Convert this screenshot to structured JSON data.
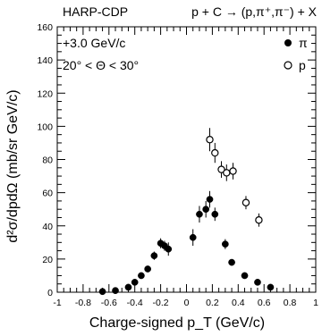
{
  "header": {
    "left": "HARP-CDP",
    "right": "p + C → (p,π⁺,π⁻) + X"
  },
  "chart_data": {
    "type": "scatter",
    "annotations": [
      "+3.0 GeV/c",
      "20° < Θ < 30°"
    ],
    "xlabel": "Charge-signed p_T (GeV/c)",
    "ylabel": "d²σ/dpdΩ (mb/sr GeV/c)",
    "xlim": [
      -1,
      1
    ],
    "ylim": [
      0,
      160
    ],
    "x_ticks": [
      "-1",
      "-0.8",
      "-0.6",
      "-0.4",
      "-0.2",
      "0",
      "0.2",
      "0.4",
      "0.6",
      "0.8",
      "1"
    ],
    "y_ticks": [
      "0",
      "20",
      "40",
      "60",
      "80",
      "100",
      "120",
      "140",
      "160"
    ],
    "legend_position": "top-right",
    "series": [
      {
        "name": "π",
        "marker": "filled-circle",
        "points": [
          {
            "x": -0.65,
            "y": 0.4,
            "err": 0.3
          },
          {
            "x": -0.55,
            "y": 1.0,
            "err": 0.4
          },
          {
            "x": -0.45,
            "y": 3.0,
            "err": 0.6
          },
          {
            "x": -0.4,
            "y": 6.0,
            "err": 1.0
          },
          {
            "x": -0.35,
            "y": 10.0,
            "err": 1.2
          },
          {
            "x": -0.3,
            "y": 14.0,
            "err": 1.5
          },
          {
            "x": -0.25,
            "y": 22.0,
            "err": 2.5
          },
          {
            "x": -0.2,
            "y": 29.5,
            "err": 3.0
          },
          {
            "x": -0.17,
            "y": 28.0,
            "err": 3.0
          },
          {
            "x": -0.14,
            "y": 26.0,
            "err": 4.0
          },
          {
            "x": 0.05,
            "y": 33.0,
            "err": 5.0
          },
          {
            "x": 0.1,
            "y": 47.0,
            "err": 5.0
          },
          {
            "x": 0.15,
            "y": 50.0,
            "err": 5.0
          },
          {
            "x": 0.18,
            "y": 56.0,
            "err": 5.0
          },
          {
            "x": 0.22,
            "y": 47.0,
            "err": 4.0
          },
          {
            "x": 0.3,
            "y": 29.0,
            "err": 3.0
          },
          {
            "x": 0.35,
            "y": 18.0,
            "err": 1.5
          },
          {
            "x": 0.45,
            "y": 10.0,
            "err": 1.0
          },
          {
            "x": 0.55,
            "y": 6.0,
            "err": 0.8
          },
          {
            "x": 0.65,
            "y": 3.0,
            "err": 0.5
          }
        ]
      },
      {
        "name": "p",
        "marker": "open-circle",
        "points": [
          {
            "x": 0.18,
            "y": 92.0,
            "err": 7.0
          },
          {
            "x": 0.22,
            "y": 84.0,
            "err": 6.0
          },
          {
            "x": 0.27,
            "y": 74.0,
            "err": 5.0
          },
          {
            "x": 0.31,
            "y": 72.0,
            "err": 5.0
          },
          {
            "x": 0.36,
            "y": 73.0,
            "err": 5.0
          },
          {
            "x": 0.46,
            "y": 54.0,
            "err": 4.0
          },
          {
            "x": 0.56,
            "y": 43.5,
            "err": 4.0
          }
        ]
      }
    ]
  }
}
